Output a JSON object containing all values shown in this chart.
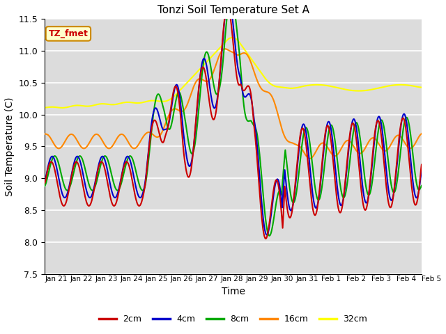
{
  "title": "Tonzi Soil Temperature Set A",
  "xlabel": "Time",
  "ylabel": "Soil Temperature (C)",
  "ylim": [
    7.5,
    11.5
  ],
  "background_color": "#dcdcdc",
  "legend_label": "TZ_fmet",
  "legend_box_facecolor": "#ffffcc",
  "legend_box_edgecolor": "#cc8800",
  "series_colors": {
    "2cm": "#cc0000",
    "4cm": "#0000cc",
    "8cm": "#00aa00",
    "16cm": "#ff8800",
    "32cm": "#ffff00"
  },
  "series_linewidth": 1.5,
  "tick_labels": [
    "Jan 21",
    "Jan 22",
    "Jan 23",
    "Jan 24",
    "Jan 25",
    "Jan 26",
    "Jan 27",
    "Jan 28",
    "Jan 29",
    "Jan 30",
    "Jan 31",
    "Feb 1",
    "Feb 2",
    "Feb 3",
    "Feb 4",
    "Feb 5"
  ],
  "n_points": 720,
  "days": 15
}
